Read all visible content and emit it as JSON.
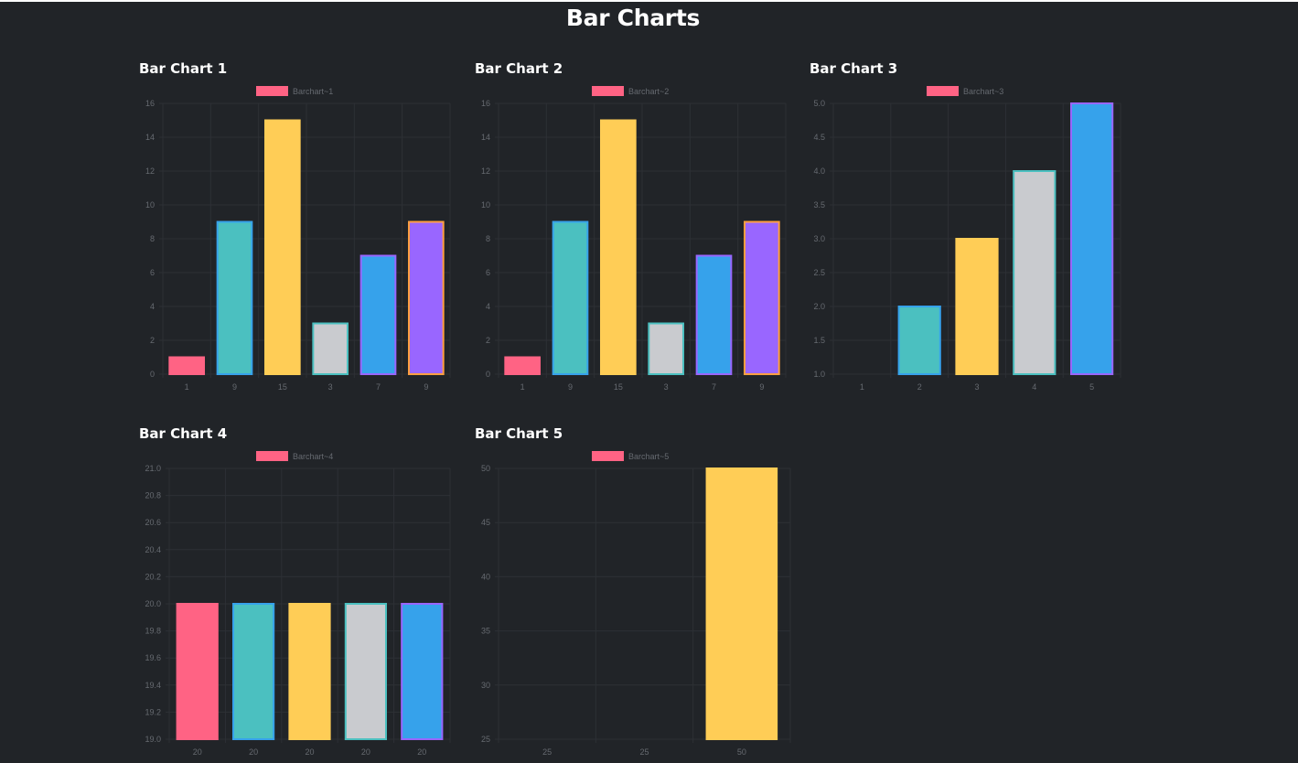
{
  "page": {
    "title": "Bar Charts"
  },
  "colors": {
    "background": "#212428",
    "gridline": "#2d3035",
    "palette_fill": [
      "#ff6384",
      "#4bc0c0",
      "#ffcd56",
      "#c9cbcf",
      "#36a2eb",
      "#9966ff"
    ],
    "palette_border": [
      "#ff6384",
      "#36a2eb",
      "#ffcd56",
      "#4bc0c0",
      "#9966ff",
      "#ff9f40"
    ],
    "legend_swatch": "#ff6384"
  },
  "chart_data": [
    {
      "heading": "Bar Chart 1",
      "type": "bar",
      "categories": [
        "1",
        "9",
        "15",
        "3",
        "7",
        "9"
      ],
      "series": [
        {
          "name": "Barchart~1",
          "values": [
            1,
            9,
            15,
            3,
            7,
            9
          ]
        }
      ],
      "ylim": [
        0,
        16
      ],
      "yticks": [
        "0",
        "2",
        "4",
        "6",
        "8",
        "10",
        "12",
        "14",
        "16"
      ],
      "legend": "top-center",
      "grid": true
    },
    {
      "heading": "Bar Chart 2",
      "type": "bar",
      "categories": [
        "1",
        "9",
        "15",
        "3",
        "7",
        "9"
      ],
      "series": [
        {
          "name": "Barchart~2",
          "values": [
            1,
            9,
            15,
            3,
            7,
            9
          ]
        }
      ],
      "ylim": [
        0,
        16
      ],
      "yticks": [
        "0",
        "2",
        "4",
        "6",
        "8",
        "10",
        "12",
        "14",
        "16"
      ],
      "legend": "top-center",
      "grid": true
    },
    {
      "heading": "Bar Chart 3",
      "type": "bar",
      "categories": [
        "1",
        "2",
        "3",
        "4",
        "5"
      ],
      "series": [
        {
          "name": "Barchart~3",
          "values": [
            1,
            2,
            3,
            4,
            5
          ]
        }
      ],
      "ylim": [
        1,
        5
      ],
      "yticks": [
        "1.0",
        "1.5",
        "2.0",
        "2.5",
        "3.0",
        "3.5",
        "4.0",
        "4.5",
        "5.0"
      ],
      "legend": "top-center",
      "grid": true
    },
    {
      "heading": "Bar Chart 4",
      "type": "bar",
      "categories": [
        "20",
        "20",
        "20",
        "20",
        "20"
      ],
      "series": [
        {
          "name": "Barchart~4",
          "values": [
            20,
            20,
            20,
            20,
            20
          ]
        }
      ],
      "ylim": [
        19,
        21
      ],
      "yticks": [
        "19.0",
        "19.2",
        "19.4",
        "19.6",
        "19.8",
        "20.0",
        "20.2",
        "20.4",
        "20.6",
        "20.8",
        "21.0"
      ],
      "legend": "top-center",
      "grid": true
    },
    {
      "heading": "Bar Chart 5",
      "type": "bar",
      "categories": [
        "25",
        "25",
        "50"
      ],
      "series": [
        {
          "name": "Barchart~5",
          "values": [
            25,
            25,
            50
          ]
        }
      ],
      "ylim": [
        25,
        50
      ],
      "yticks": [
        "25",
        "30",
        "35",
        "40",
        "45",
        "50"
      ],
      "legend": "top-center",
      "grid": true
    }
  ]
}
